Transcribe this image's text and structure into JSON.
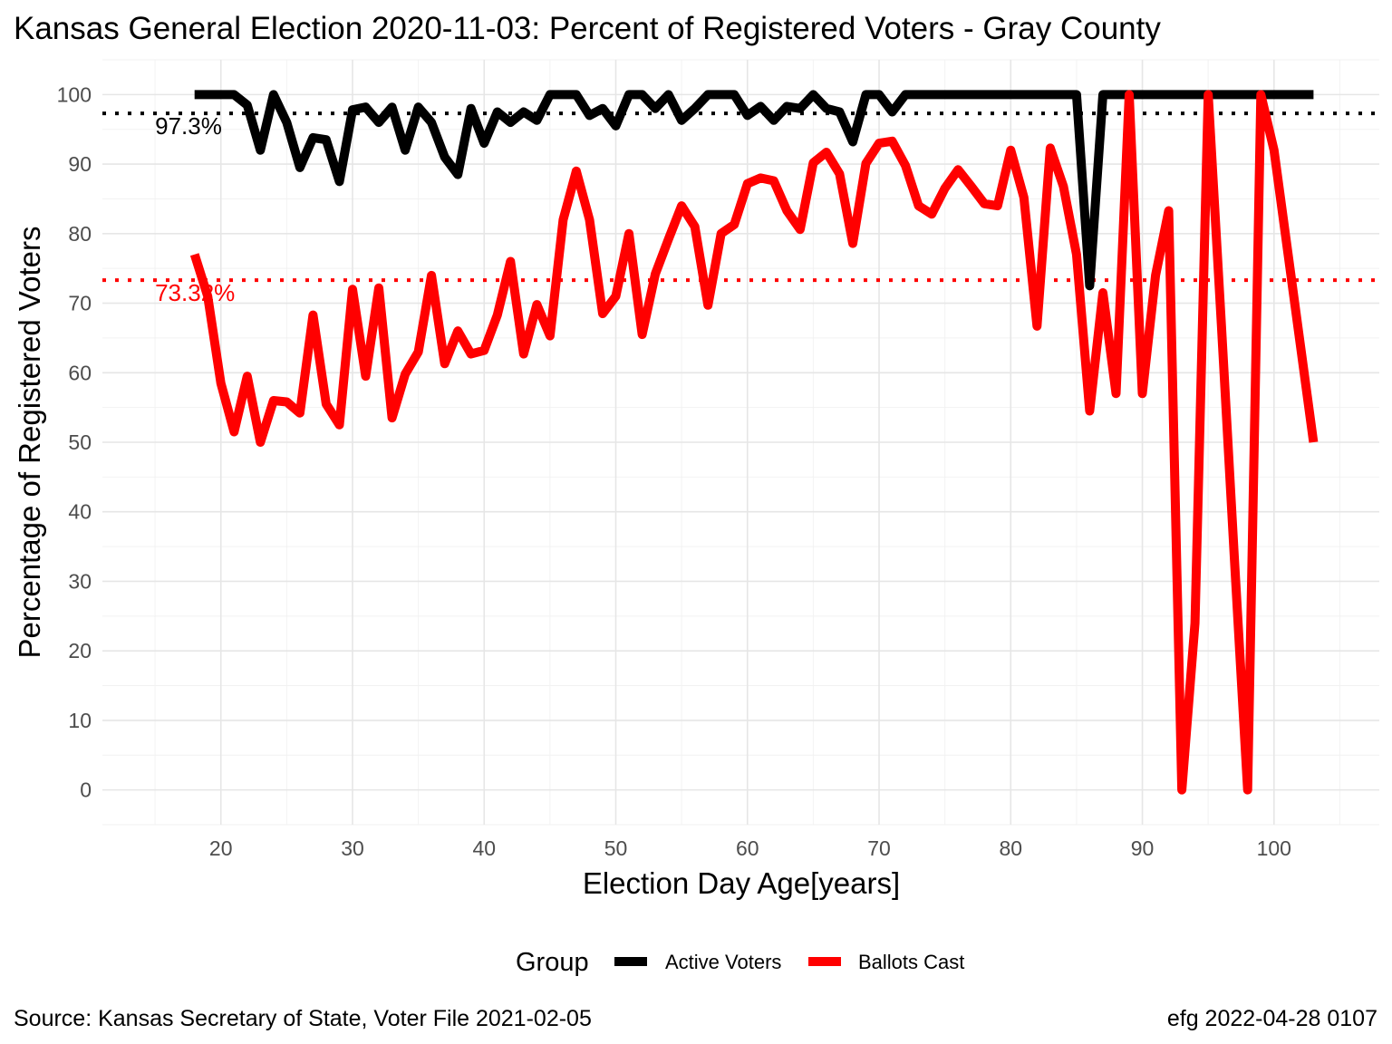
{
  "chart_data": {
    "type": "line",
    "title": "Kansas General Election 2020-11-03:  Percent of Registered Voters - Gray County",
    "xlabel": "Election Day Age[years]",
    "ylabel": "Percentage of Registered Voters",
    "xlim": [
      11,
      108
    ],
    "ylim": [
      -5,
      105
    ],
    "x_ticks": [
      20,
      30,
      40,
      50,
      60,
      70,
      80,
      90,
      100
    ],
    "y_ticks": [
      0,
      10,
      20,
      30,
      40,
      50,
      60,
      70,
      80,
      90,
      100
    ],
    "grid": true,
    "legend": {
      "title": "Group",
      "position": "bottom",
      "entries": [
        {
          "label": "Active Voters",
          "color": "#000000"
        },
        {
          "label": "Ballots Cast",
          "color": "#ff0000"
        }
      ]
    },
    "reference_lines": [
      {
        "value": 97.3,
        "label": "97.3%",
        "color": "#000000",
        "style": "dotted"
      },
      {
        "value": 73.32,
        "label": "73.32%",
        "color": "#ff0000",
        "style": "dotted"
      }
    ],
    "series": [
      {
        "name": "Active Voters",
        "color": "#000000",
        "x": [
          18,
          19,
          20,
          21,
          22,
          23,
          24,
          25,
          26,
          27,
          28,
          29,
          30,
          31,
          32,
          33,
          34,
          35,
          36,
          37,
          38,
          39,
          40,
          41,
          42,
          43,
          44,
          45,
          46,
          47,
          48,
          49,
          50,
          51,
          52,
          53,
          54,
          55,
          56,
          57,
          58,
          59,
          60,
          61,
          62,
          63,
          64,
          65,
          66,
          67,
          68,
          69,
          70,
          71,
          72,
          73,
          74,
          75,
          76,
          77,
          78,
          79,
          80,
          81,
          82,
          83,
          84,
          85,
          86,
          87,
          88,
          89,
          90,
          91,
          92,
          93,
          94,
          95,
          96,
          97,
          98,
          99,
          100,
          101,
          102,
          103
        ],
        "y": [
          100,
          100,
          100,
          100,
          98.5,
          92,
          100,
          96,
          89.5,
          93.8,
          93.5,
          87.5,
          97.8,
          98.2,
          96,
          98.2,
          92,
          98.2,
          96,
          91,
          88.5,
          98,
          93,
          97.5,
          96,
          97.5,
          96.3,
          100,
          100,
          100,
          97,
          98,
          95.5,
          100,
          100,
          98,
          100,
          96.3,
          98,
          100,
          100,
          100,
          97,
          98.3,
          96.3,
          98.3,
          98,
          100,
          98,
          97.5,
          93.2,
          100,
          100,
          97.5,
          100,
          100,
          100,
          100,
          100,
          100,
          100,
          100,
          100,
          100,
          100,
          100,
          100,
          100,
          72.5,
          100,
          100,
          100,
          100,
          100,
          100,
          100,
          100,
          100,
          100,
          100,
          100,
          100,
          100,
          100,
          100,
          100
        ]
      },
      {
        "name": "Ballots Cast",
        "color": "#ff0000",
        "x": [
          18,
          19,
          20,
          21,
          22,
          23,
          24,
          25,
          26,
          27,
          28,
          29,
          30,
          31,
          32,
          33,
          34,
          35,
          36,
          37,
          38,
          39,
          40,
          41,
          42,
          43,
          44,
          45,
          46,
          47,
          48,
          49,
          50,
          51,
          52,
          53,
          54,
          55,
          56,
          57,
          58,
          59,
          60,
          61,
          62,
          63,
          64,
          65,
          66,
          67,
          68,
          69,
          70,
          71,
          72,
          73,
          74,
          75,
          76,
          77,
          78,
          79,
          80,
          81,
          82,
          83,
          84,
          85,
          86,
          87,
          88,
          89,
          90,
          91,
          92,
          93,
          94,
          95,
          96,
          97,
          98,
          99,
          100,
          103
        ],
        "y": [
          77,
          71,
          58.5,
          51.5,
          59.5,
          50,
          56,
          55.8,
          54.2,
          68.3,
          55.5,
          52.5,
          72,
          59.5,
          72.2,
          53.5,
          59.8,
          63,
          74,
          61.3,
          66,
          62.7,
          63.2,
          68.3,
          76,
          62.7,
          69.8,
          65.3,
          82,
          89,
          82,
          68.5,
          71,
          80,
          65.5,
          74.2,
          79.2,
          84,
          81,
          69.7,
          80,
          81.3,
          87.2,
          88,
          87.6,
          83.3,
          80.6,
          90.2,
          91.7,
          88.6,
          78.6,
          90.1,
          93,
          93.3,
          89.8,
          84,
          82.8,
          86.5,
          89.2,
          86.8,
          84.3,
          84,
          92,
          85.2,
          66.7,
          92.3,
          86.8,
          77,
          54.5,
          71.5,
          57,
          100,
          57,
          74,
          83.3,
          0,
          24,
          100,
          67,
          33,
          0,
          100,
          92,
          50
        ]
      }
    ]
  },
  "caption": {
    "source": "Source:  Kansas Secretary of State, Voter File  2021-02-05",
    "credit": "efg 2022-04-28 0107"
  }
}
